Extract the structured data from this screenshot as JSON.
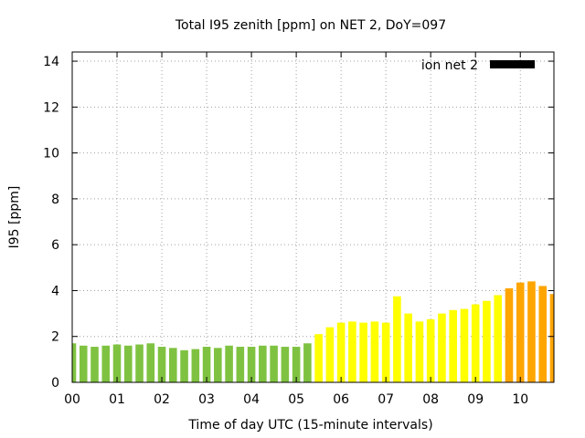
{
  "chart_data": {
    "type": "bar",
    "title": "Total I95 zenith [ppm] on NET 2, DoY=097",
    "xlabel": "Time of day UTC (15-minute intervals)",
    "ylabel": "I95 [ppm]",
    "ylim": [
      0,
      14.4
    ],
    "xlim_hours": [
      0,
      10.75
    ],
    "y_ticks": [
      "0",
      "2",
      "4",
      "6",
      "8",
      "10",
      "12",
      "14"
    ],
    "x_ticks": [
      "00",
      "01",
      "02",
      "03",
      "04",
      "05",
      "06",
      "07",
      "08",
      "09",
      "10"
    ],
    "grid": true,
    "legend": {
      "label": "ion net 2",
      "color": "#000000",
      "placement": "top-right"
    },
    "interval_hours": 0.25,
    "values": [
      1.7,
      1.6,
      1.55,
      1.6,
      1.65,
      1.6,
      1.65,
      1.7,
      1.55,
      1.5,
      1.4,
      1.45,
      1.55,
      1.5,
      1.6,
      1.55,
      1.55,
      1.6,
      1.6,
      1.55,
      1.55,
      1.7,
      2.1,
      2.4,
      2.6,
      2.65,
      2.6,
      2.65,
      2.6,
      3.75,
      3.0,
      2.65,
      2.75,
      3.0,
      3.15,
      3.2,
      3.4,
      3.55,
      3.8,
      4.1,
      4.35,
      4.4,
      4.2,
      3.85
    ],
    "colors": [
      "#7fc241",
      "#7fc241",
      "#7fc241",
      "#7fc241",
      "#7fc241",
      "#7fc241",
      "#7fc241",
      "#7fc241",
      "#7fc241",
      "#7fc241",
      "#7fc241",
      "#7fc241",
      "#7fc241",
      "#7fc241",
      "#7fc241",
      "#7fc241",
      "#7fc241",
      "#7fc241",
      "#7fc241",
      "#7fc241",
      "#7fc241",
      "#7fc241",
      "#ffff00",
      "#ffff00",
      "#ffff00",
      "#ffff00",
      "#ffff00",
      "#ffff00",
      "#ffff00",
      "#ffff00",
      "#ffff00",
      "#ffff00",
      "#ffff00",
      "#ffff00",
      "#ffff00",
      "#ffff00",
      "#ffff00",
      "#ffff00",
      "#ffff00",
      "#ffa500",
      "#ffa500",
      "#ffa500",
      "#ffa500",
      "#ffa500"
    ]
  }
}
